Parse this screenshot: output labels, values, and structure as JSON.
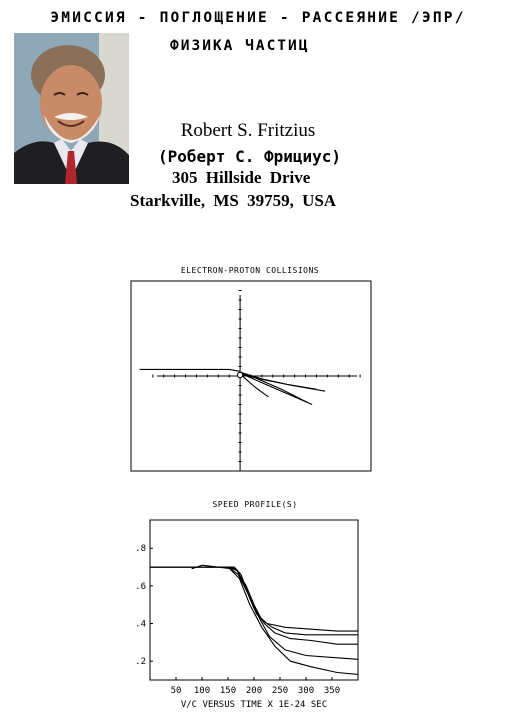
{
  "header": {
    "line1": "ЭМИССИЯ - ПОГЛОЩЕНИЕ - РАССЕЯНИЕ  /ЭПР/",
    "line2": "ФИЗИКА ЧАСТИЦ"
  },
  "person": {
    "name": "Robert S. Fritzius",
    "name_ru": "(Роберт С. Фрициус)",
    "address_line1": "305 Hillside Drive",
    "address_line2": "Starkville,  MS    39759,  USA"
  },
  "colors": {
    "ink": "#000000",
    "background": "#ffffff",
    "photo_background": "#8fa8b8",
    "photo_face": "#c98a68",
    "photo_hair": "#8a7058",
    "photo_jacket": "#1f1f22",
    "photo_tie": "#b0262c"
  },
  "chart_data": [
    {
      "type": "line",
      "title": "ELECTRON-PROTON COLLISIONS",
      "axes": "crosshair-at-origin",
      "xlim": [
        -100,
        120
      ],
      "ylim": [
        -100,
        100
      ],
      "grid": false,
      "origin_marker": "circle",
      "series": [
        {
          "x": [
            -92,
            -10,
            0
          ],
          "y": [
            7,
            7,
            5
          ]
        },
        {
          "x": [
            0,
            14,
            38,
            62
          ],
          "y": [
            4,
            -2,
            -14,
            -28
          ]
        },
        {
          "x": [
            0,
            18,
            42,
            66
          ],
          "y": [
            3,
            -6,
            -18,
            -30
          ]
        },
        {
          "x": [
            0,
            22,
            48,
            78
          ],
          "y": [
            2,
            -4,
            -10,
            -16
          ]
        },
        {
          "x": [
            0,
            6,
            14,
            26
          ],
          "y": [
            2,
            -4,
            -12,
            -22
          ]
        },
        {
          "x": [
            0,
            20,
            44,
            70
          ],
          "y": [
            4,
            -3,
            -9,
            -14
          ]
        }
      ]
    },
    {
      "type": "line",
      "title": "SPEED PROFILE(S)",
      "xlabel": "V/C  VERSUS  TIME X 1E-24 SEC",
      "xlim": [
        0,
        400
      ],
      "ylim": [
        0.1,
        0.95
      ],
      "yticks": [
        0.8,
        0.6,
        0.4,
        0.2
      ],
      "ytick_labels": [
        ".8",
        ".6",
        ".4",
        ".2"
      ],
      "xticks": [
        50,
        100,
        150,
        200,
        250,
        300,
        350
      ],
      "xtick_labels": [
        "50",
        "100",
        "150",
        "200",
        "250",
        "300",
        "350"
      ],
      "grid": false,
      "series": [
        {
          "x": [
            0,
            60,
            100,
            150,
            162,
            175,
            190,
            205,
            225,
            260,
            310,
            360,
            400
          ],
          "y": [
            0.7,
            0.7,
            0.7,
            0.7,
            0.7,
            0.66,
            0.55,
            0.45,
            0.4,
            0.38,
            0.37,
            0.36,
            0.36
          ]
        },
        {
          "x": [
            0,
            60,
            100,
            150,
            165,
            185,
            200,
            215,
            235,
            260,
            300,
            350,
            400
          ],
          "y": [
            0.7,
            0.7,
            0.7,
            0.7,
            0.69,
            0.6,
            0.5,
            0.42,
            0.38,
            0.35,
            0.34,
            0.34,
            0.34
          ]
        },
        {
          "x": [
            0,
            60,
            100,
            150,
            168,
            185,
            200,
            220,
            240,
            270,
            310,
            360,
            400
          ],
          "y": [
            0.7,
            0.7,
            0.7,
            0.7,
            0.68,
            0.58,
            0.48,
            0.4,
            0.35,
            0.32,
            0.31,
            0.29,
            0.29
          ]
        },
        {
          "x": [
            0,
            60,
            100,
            150,
            170,
            190,
            210,
            230,
            260,
            300,
            350,
            400
          ],
          "y": [
            0.7,
            0.7,
            0.7,
            0.7,
            0.66,
            0.55,
            0.43,
            0.33,
            0.26,
            0.23,
            0.22,
            0.21
          ]
        },
        {
          "x": [
            0,
            60,
            100,
            150,
            172,
            192,
            215,
            240,
            270,
            310,
            360,
            400
          ],
          "y": [
            0.7,
            0.7,
            0.7,
            0.7,
            0.64,
            0.5,
            0.38,
            0.28,
            0.2,
            0.17,
            0.14,
            0.13
          ]
        },
        {
          "x": [
            80,
            100,
            130,
            160
          ],
          "y": [
            0.69,
            0.71,
            0.7,
            0.69
          ]
        }
      ]
    }
  ]
}
